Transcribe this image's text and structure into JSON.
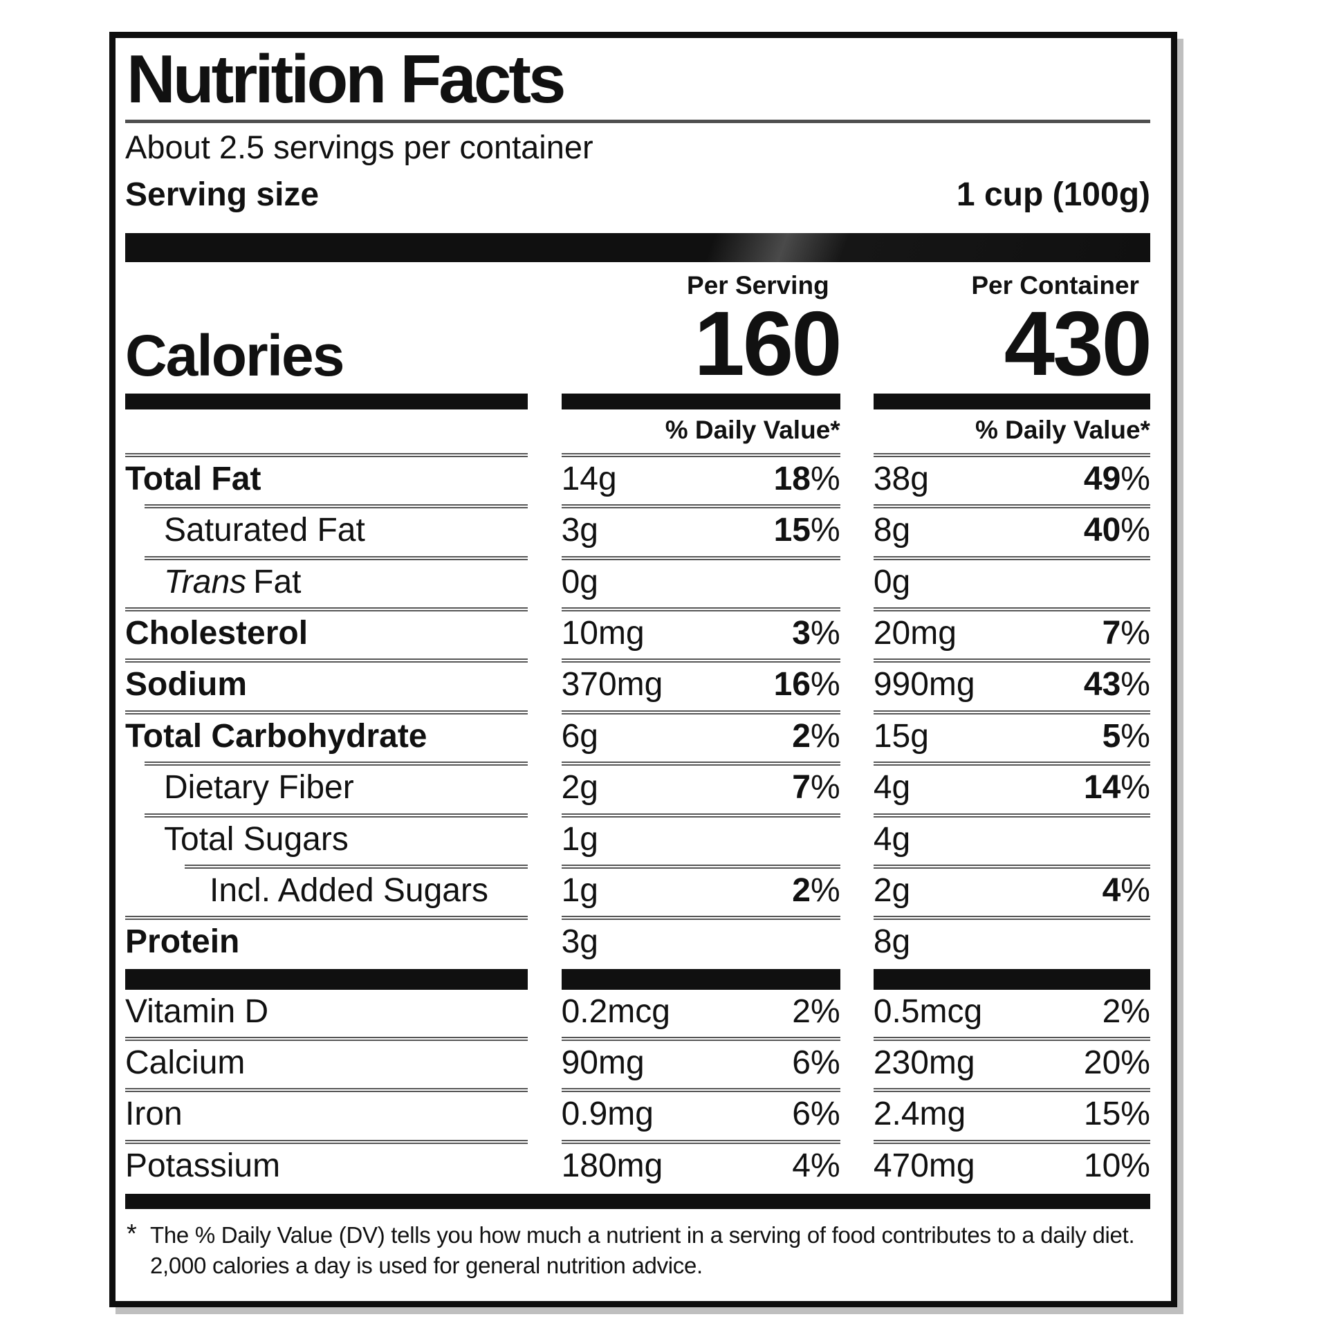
{
  "label": {
    "title": "Nutrition Facts",
    "servings_per_container": "About 2.5 servings per container",
    "serving_size_label": "Serving size",
    "serving_size_value": "1 cup (100g)",
    "calories_label": "Calories",
    "percent_sign": "%",
    "columns": {
      "serving_header": "Per Serving",
      "container_header": "Per Container",
      "serving_calories": "160",
      "container_calories": "430",
      "daily_value_header": "% Daily Value*"
    },
    "rows": [
      {
        "name": "Total Fat",
        "serving": {
          "amount": "14g",
          "dv": "18"
        },
        "container": {
          "amount": "38g",
          "dv": "49"
        }
      },
      {
        "name": "Saturated Fat",
        "serving": {
          "amount": "3g",
          "dv": "15"
        },
        "container": {
          "amount": "8g",
          "dv": "40"
        }
      },
      {
        "name_italic": "Trans",
        "name": "Fat",
        "serving": {
          "amount": "0g"
        },
        "container": {
          "amount": "0g"
        }
      },
      {
        "name": "Cholesterol",
        "serving": {
          "amount": "10mg",
          "dv": "3"
        },
        "container": {
          "amount": "20mg",
          "dv": "7"
        }
      },
      {
        "name": "Sodium",
        "serving": {
          "amount": "370mg",
          "dv": "16"
        },
        "container": {
          "amount": "990mg",
          "dv": "43"
        }
      },
      {
        "name": "Total Carbohydrate",
        "serving": {
          "amount": "6g",
          "dv": "2"
        },
        "container": {
          "amount": "15g",
          "dv": "5"
        }
      },
      {
        "name": "Dietary Fiber",
        "serving": {
          "amount": "2g",
          "dv": "7"
        },
        "container": {
          "amount": "4g",
          "dv": "14"
        }
      },
      {
        "name": "Total Sugars",
        "serving": {
          "amount": "1g"
        },
        "container": {
          "amount": "4g"
        }
      },
      {
        "name": "Incl. Added Sugars",
        "serving": {
          "amount": "1g",
          "dv": "2"
        },
        "container": {
          "amount": "2g",
          "dv": "4"
        }
      },
      {
        "name": "Protein",
        "serving": {
          "amount": "3g"
        },
        "container": {
          "amount": "8g"
        }
      }
    ],
    "vitamins": [
      {
        "name": "Vitamin D",
        "serving": {
          "amount": "0.2mcg",
          "dv": "2"
        },
        "container": {
          "amount": "0.5mcg",
          "dv": "2"
        }
      },
      {
        "name": "Calcium",
        "serving": {
          "amount": "90mg",
          "dv": "6"
        },
        "container": {
          "amount": "230mg",
          "dv": "20"
        }
      },
      {
        "name": "Iron",
        "serving": {
          "amount": "0.9mg",
          "dv": "6"
        },
        "container": {
          "amount": "2.4mg",
          "dv": "15"
        }
      },
      {
        "name": "Potassium",
        "serving": {
          "amount": "180mg",
          "dv": "4"
        },
        "container": {
          "amount": "470mg",
          "dv": "10"
        }
      }
    ],
    "footnote": {
      "marker": "*",
      "line1": "The % Daily Value (DV) tells you how much a nutrient in a serving of food contributes to a daily diet.",
      "line2": "2,000 calories a day is used for general nutrition advice."
    }
  }
}
